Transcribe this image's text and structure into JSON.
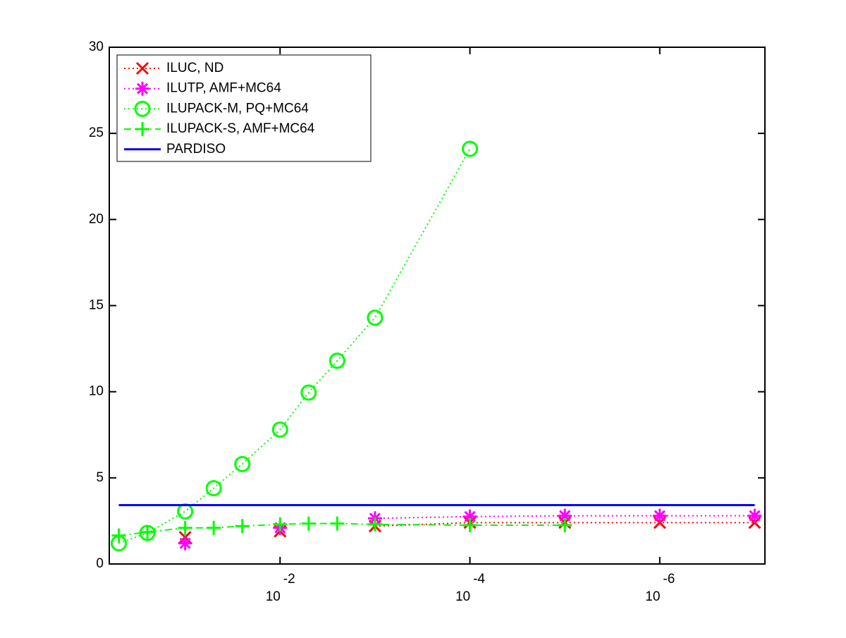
{
  "chart_data": {
    "type": "line",
    "x": [
      0.5,
      0.25,
      0.1,
      0.05,
      0.025,
      0.01,
      0.005,
      0.0025,
      0.001,
      0.0001,
      1e-05,
      1e-06,
      1e-07
    ],
    "xlim": [
      0.63,
      7.8e-08
    ],
    "xscale": "log",
    "xticks": [
      {
        "value": 0.01,
        "label": "10",
        "exponent": "-2"
      },
      {
        "value": 0.0001,
        "label": "10",
        "exponent": "-4"
      },
      {
        "value": 1e-06,
        "label": "10",
        "exponent": "-6"
      }
    ],
    "ylim": [
      0,
      30
    ],
    "yticks": [
      0,
      5,
      10,
      15,
      20,
      25,
      30
    ],
    "legend": "upper left",
    "series": [
      {
        "name": "ILUC,  ND",
        "color": "#ff0000",
        "marker": "x",
        "linestyle": "dotted",
        "values": [
          null,
          null,
          1.55,
          null,
          null,
          1.9,
          null,
          null,
          2.2,
          2.4,
          2.4,
          2.4,
          2.4
        ]
      },
      {
        "name": "ILUTP, AMF+MC64",
        "color": "#ff00ff",
        "marker": "*",
        "linestyle": "dotted",
        "values": [
          null,
          null,
          1.2,
          null,
          null,
          2.1,
          null,
          null,
          2.65,
          2.75,
          2.8,
          2.8,
          2.8
        ]
      },
      {
        "name": "ILUPACK-M, PQ+MC64",
        "color": "#00ff00",
        "marker": "o",
        "linestyle": "dotted",
        "values": [
          1.2,
          1.8,
          3.05,
          4.4,
          5.8,
          7.8,
          9.95,
          11.8,
          14.3,
          24.1,
          null,
          null,
          null
        ]
      },
      {
        "name": "ILUPACK-S, AMF+MC64",
        "color": "#00ff00",
        "marker": "+",
        "linestyle": "dashdot",
        "values": [
          1.65,
          1.85,
          2.1,
          2.1,
          2.2,
          2.3,
          2.35,
          2.35,
          2.3,
          2.25,
          2.25,
          null,
          null
        ]
      },
      {
        "name": "PARDISO",
        "color": "#0000ff",
        "marker": "none",
        "linestyle": "solid",
        "values": [
          3.42,
          3.42,
          3.42,
          3.42,
          3.42,
          3.42,
          3.42,
          3.42,
          3.42,
          3.42,
          3.42,
          3.42,
          3.42
        ]
      }
    ]
  }
}
